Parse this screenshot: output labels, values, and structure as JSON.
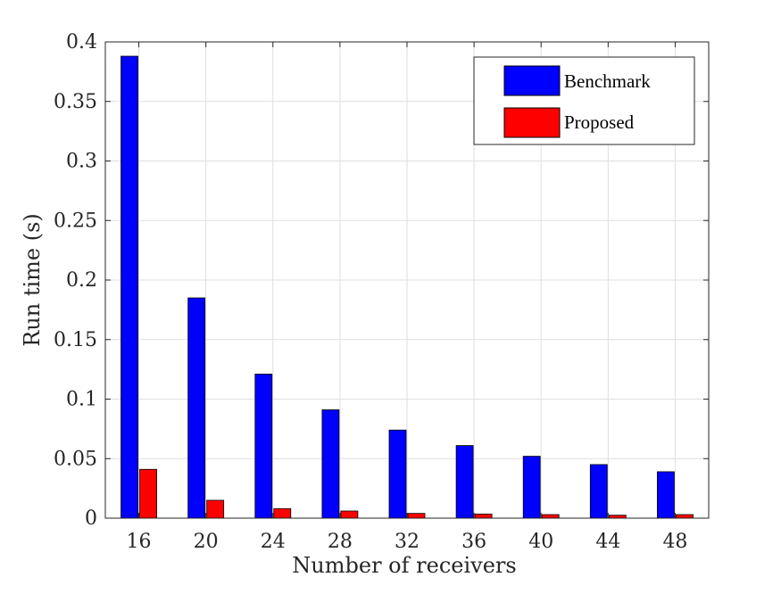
{
  "chart_data": {
    "type": "bar",
    "categories": [
      "16",
      "20",
      "24",
      "28",
      "32",
      "36",
      "40",
      "44",
      "48"
    ],
    "series": [
      {
        "name": "Benchmark",
        "color": "#0000ff",
        "values": [
          0.388,
          0.185,
          0.121,
          0.091,
          0.074,
          0.061,
          0.052,
          0.045,
          0.039
        ]
      },
      {
        "name": "Proposed",
        "color": "#ff0000",
        "values": [
          0.041,
          0.015,
          0.008,
          0.006,
          0.004,
          0.0035,
          0.003,
          0.0025,
          0.003
        ]
      }
    ],
    "xlabel": "Number of receivers",
    "ylabel": "Run time (s)",
    "ylim": [
      0,
      0.4
    ],
    "yticks": [
      "0",
      "0.05",
      "0.1",
      "0.15",
      "0.2",
      "0.25",
      "0.3",
      "0.35",
      "0.4"
    ],
    "grid": true,
    "legend_position": "top-right"
  }
}
